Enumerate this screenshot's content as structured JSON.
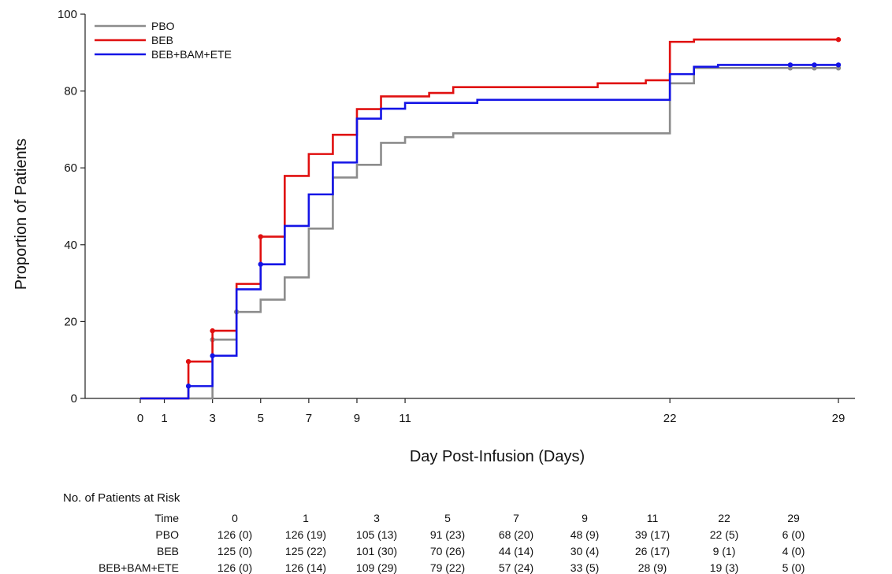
{
  "chart_data": {
    "type": "line",
    "subtype": "step",
    "xlabel": "Day Post-Infusion (Days)",
    "ylabel": "Proportion of Patients",
    "xlim": [
      0,
      29
    ],
    "ylim": [
      0,
      100
    ],
    "x_ticks": [
      "0",
      "1",
      "3",
      "5",
      "7",
      "9",
      "11",
      "22",
      "29"
    ],
    "x_tick_values": [
      0,
      1,
      3,
      5,
      7,
      9,
      11,
      22,
      29
    ],
    "y_ticks": [
      "0",
      "20",
      "40",
      "60",
      "80",
      "100"
    ],
    "y_tick_values": [
      0,
      20,
      40,
      60,
      80,
      100
    ],
    "grid": false,
    "legend_position": "top-left",
    "series": [
      {
        "name": "PBO",
        "color": "#8c8c8c",
        "steps": [
          [
            0,
            0
          ],
          [
            2,
            0
          ],
          [
            3,
            15.3
          ],
          [
            4,
            22.5
          ],
          [
            5,
            25.7
          ],
          [
            6,
            31.5
          ],
          [
            7,
            44.2
          ],
          [
            8,
            57.5
          ],
          [
            9,
            60.8
          ],
          [
            10,
            66.5
          ],
          [
            11,
            68.0
          ],
          [
            13,
            69.0
          ],
          [
            22,
            82.0
          ],
          [
            23,
            86.0
          ],
          [
            29,
            86.0
          ]
        ],
        "censored": [
          [
            3,
            15.3
          ],
          [
            4,
            22.5
          ],
          [
            27,
            86.0
          ],
          [
            28,
            86.0
          ],
          [
            29,
            86.0
          ]
        ]
      },
      {
        "name": "BEB",
        "color": "#e01010",
        "steps": [
          [
            0,
            0
          ],
          [
            2,
            9.6
          ],
          [
            3,
            17.6
          ],
          [
            4,
            29.8
          ],
          [
            5,
            42.1
          ],
          [
            6,
            57.9
          ],
          [
            7,
            63.6
          ],
          [
            8,
            68.6
          ],
          [
            9,
            75.3
          ],
          [
            10,
            78.6
          ],
          [
            12,
            79.5
          ],
          [
            13,
            81.0
          ],
          [
            19,
            82.0
          ],
          [
            21,
            82.8
          ],
          [
            22,
            92.8
          ],
          [
            23,
            93.4
          ],
          [
            29,
            93.4
          ]
        ],
        "censored": [
          [
            2,
            9.6
          ],
          [
            3,
            17.6
          ],
          [
            5,
            42.1
          ],
          [
            29,
            93.4
          ]
        ]
      },
      {
        "name": "BEB+BAM+ETE",
        "color": "#1414e6",
        "steps": [
          [
            0,
            0
          ],
          [
            2,
            3.2
          ],
          [
            3,
            11.1
          ],
          [
            4,
            28.4
          ],
          [
            5,
            34.9
          ],
          [
            6,
            44.9
          ],
          [
            7,
            53.1
          ],
          [
            8,
            61.4
          ],
          [
            9,
            72.8
          ],
          [
            10,
            75.4
          ],
          [
            11,
            76.9
          ],
          [
            14,
            77.7
          ],
          [
            22,
            84.4
          ],
          [
            23,
            86.3
          ],
          [
            24,
            86.8
          ],
          [
            29,
            86.8
          ]
        ],
        "censored": [
          [
            2,
            3.2
          ],
          [
            3,
            11.1
          ],
          [
            5,
            34.9
          ],
          [
            27,
            86.8
          ],
          [
            28,
            86.8
          ],
          [
            29,
            86.8
          ]
        ]
      }
    ],
    "risk_table": {
      "title": "No. of Patients at Risk",
      "header_label": "Time",
      "times": [
        "0",
        "1",
        "3",
        "5",
        "7",
        "9",
        "11",
        "22",
        "29"
      ],
      "rows": [
        {
          "label": "PBO",
          "values": [
            "126 (0)",
            "126 (19)",
            "105 (13)",
            "91 (23)",
            "68 (20)",
            "48 (9)",
            "39 (17)",
            "22 (5)",
            "6 (0)"
          ]
        },
        {
          "label": "BEB",
          "values": [
            "125 (0)",
            "125 (22)",
            "101 (30)",
            "70 (26)",
            "44 (14)",
            "30 (4)",
            "26 (17)",
            "9 (1)",
            "4 (0)"
          ]
        },
        {
          "label": "BEB+BAM+ETE",
          "values": [
            "126 (0)",
            "126 (14)",
            "109 (29)",
            "79 (22)",
            "57 (24)",
            "33 (5)",
            "28 (9)",
            "19 (3)",
            "5 (0)"
          ]
        }
      ]
    }
  }
}
